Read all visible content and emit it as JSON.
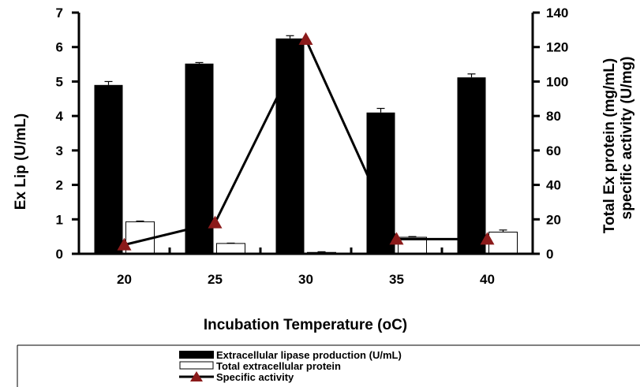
{
  "chart_data": {
    "type": "bar",
    "categories": [
      "20",
      "25",
      "30",
      "35",
      "40"
    ],
    "xlabel": "Incubation Temperature (oC)",
    "ylabel_left": "Ex Lip (U/mL)",
    "ylabel_right": [
      "Total Ex protein (mg/mL)",
      "specific activity (U/mg)"
    ],
    "ylim_left": [
      0,
      7
    ],
    "ylim_right": [
      0,
      140
    ],
    "yticks_left": [
      "0",
      "1",
      "2",
      "3",
      "4",
      "5",
      "6",
      "7"
    ],
    "yticks_right": [
      "0",
      "20",
      "40",
      "60",
      "80",
      "100",
      "120",
      "140"
    ],
    "grid": false,
    "legend_position": "bottom",
    "series": [
      {
        "name": "Extracellular lipase production (U/mL)",
        "kind": "bar",
        "axis": "left",
        "color": "#000000",
        "values": [
          4.9,
          5.52,
          6.25,
          4.1,
          5.12
        ],
        "errors": [
          0.1,
          0.03,
          0.08,
          0.12,
          0.1
        ]
      },
      {
        "name": "Total extracellular protein",
        "kind": "bar",
        "axis": "left",
        "color": "#ffffff",
        "values": [
          0.93,
          0.3,
          0.04,
          0.48,
          0.63
        ],
        "errors": [
          0.02,
          0.01,
          0.02,
          0.02,
          0.06
        ]
      },
      {
        "name": "Specific activity",
        "kind": "line",
        "axis": "right",
        "color": "#000000",
        "marker_color": "#8b1a1a",
        "values": [
          5.2,
          18,
          124.5,
          8.5,
          8.5
        ]
      }
    ]
  }
}
